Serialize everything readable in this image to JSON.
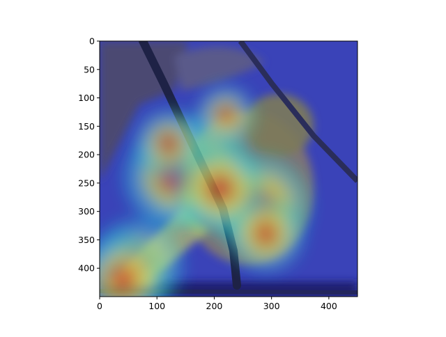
{
  "figure": {
    "x_ticks": [
      "0",
      "100",
      "200",
      "300",
      "400"
    ],
    "y_ticks": [
      "0",
      "50",
      "100",
      "150",
      "200",
      "250",
      "300",
      "350",
      "400"
    ]
  },
  "chart_data": {
    "type": "heatmap",
    "title": "",
    "xlabel": "",
    "ylabel": "",
    "xlim": [
      0,
      450
    ],
    "ylim": [
      450,
      0
    ],
    "x_ticks": [
      0,
      100,
      200,
      300,
      400
    ],
    "y_ticks": [
      0,
      50,
      100,
      150,
      200,
      250,
      300,
      350,
      400
    ],
    "colormap": "jet",
    "background": "bird-on-branch-photo",
    "hotspots": [
      {
        "x": 170,
        "y": 230,
        "intensity": 1.0
      },
      {
        "x": 130,
        "y": 240,
        "intensity": 0.85
      },
      {
        "x": 280,
        "y": 290,
        "intensity": 0.85
      },
      {
        "x": 210,
        "y": 260,
        "intensity": 0.7
      },
      {
        "x": 65,
        "y": 395,
        "intensity": 0.75
      },
      {
        "x": 40,
        "y": 420,
        "intensity": 0.7
      },
      {
        "x": 290,
        "y": 340,
        "intensity": 0.55
      },
      {
        "x": 120,
        "y": 180,
        "intensity": 0.45
      },
      {
        "x": 220,
        "y": 130,
        "intensity": 0.35
      }
    ],
    "colors": {
      "cold": "#1c2fd6",
      "mid": "#20e0e0",
      "warm": "#f5e33c",
      "hot": "#d61a1a"
    }
  }
}
